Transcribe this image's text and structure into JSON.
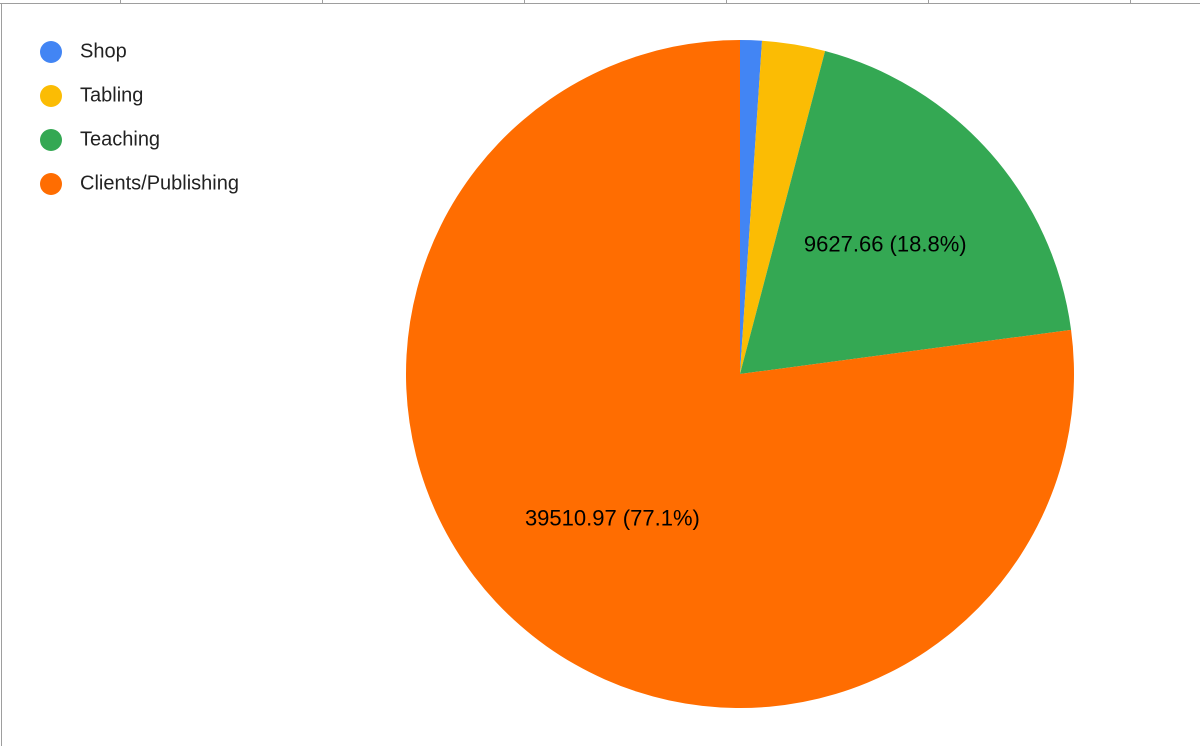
{
  "chart_data": {
    "type": "pie",
    "categories": [
      "Shop",
      "Tabling",
      "Teaching",
      "Clients/Publishing"
    ],
    "values": [
      538,
      1563,
      9627.66,
      39510.97
    ],
    "value_labels": [
      null,
      null,
      "9627.66 (18.8%)",
      "39510.97 (77.1%)"
    ],
    "colors": [
      "#4285f4",
      "#fbbc04",
      "#34a853",
      "#ff6d01"
    ],
    "legend": "top-left"
  }
}
